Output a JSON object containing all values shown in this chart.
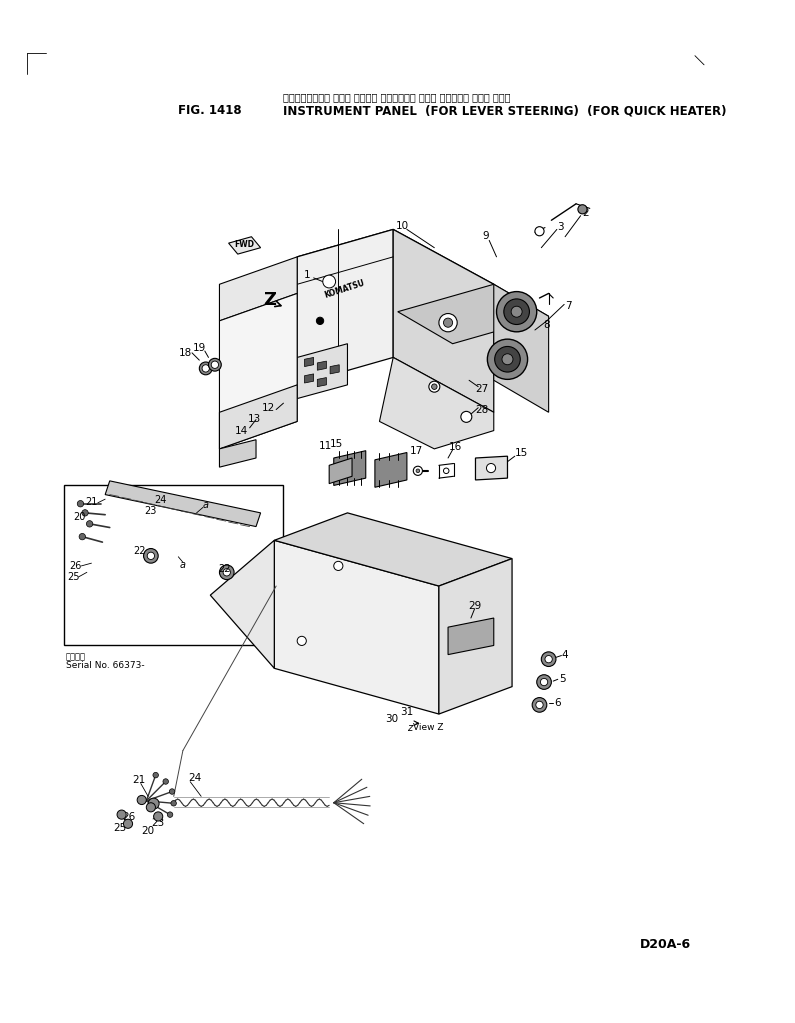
{
  "title_japanese": "インストルメント パネル （レバー ステアリング ヨウ） （クイック ヒータ ヨウ）",
  "title_english": "INSTRUMENT PANEL  (FOR LEVER STEERING)  (FOR QUICK HEATER)",
  "fig_number": "FIG. 1418",
  "model": "D20A-6",
  "bg": "#ffffff",
  "lc": "#000000",
  "serial_note": "Serial No. 66373-",
  "serial_japanese": "適用号等"
}
